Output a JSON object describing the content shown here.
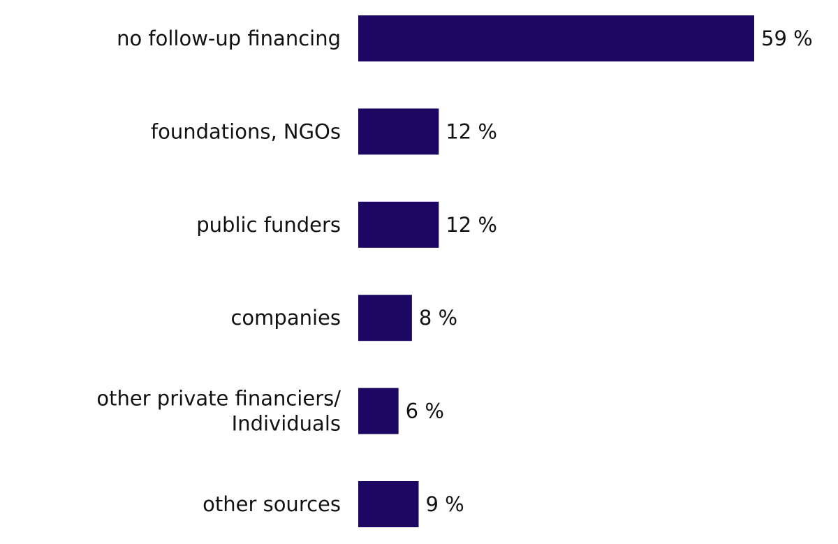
{
  "chart_data": {
    "type": "bar",
    "orientation": "horizontal",
    "categories": [
      [
        "no follow-up financing"
      ],
      [
        "foundations, NGOs"
      ],
      [
        "public funders"
      ],
      [
        "companies"
      ],
      [
        "other private financiers/",
        "Individuals"
      ],
      [
        "other sources"
      ]
    ],
    "values": [
      59,
      12,
      12,
      8,
      6,
      9
    ],
    "value_labels": [
      "59 %",
      "12 %",
      "12 %",
      "8 %",
      "6 %",
      "9 %"
    ],
    "unit": "%",
    "title": "",
    "xlabel": "",
    "ylabel": "",
    "xlim": [
      0,
      59
    ],
    "grid": false,
    "legend": "none",
    "bar_color": "#1c0763",
    "text_color": "#111111"
  }
}
